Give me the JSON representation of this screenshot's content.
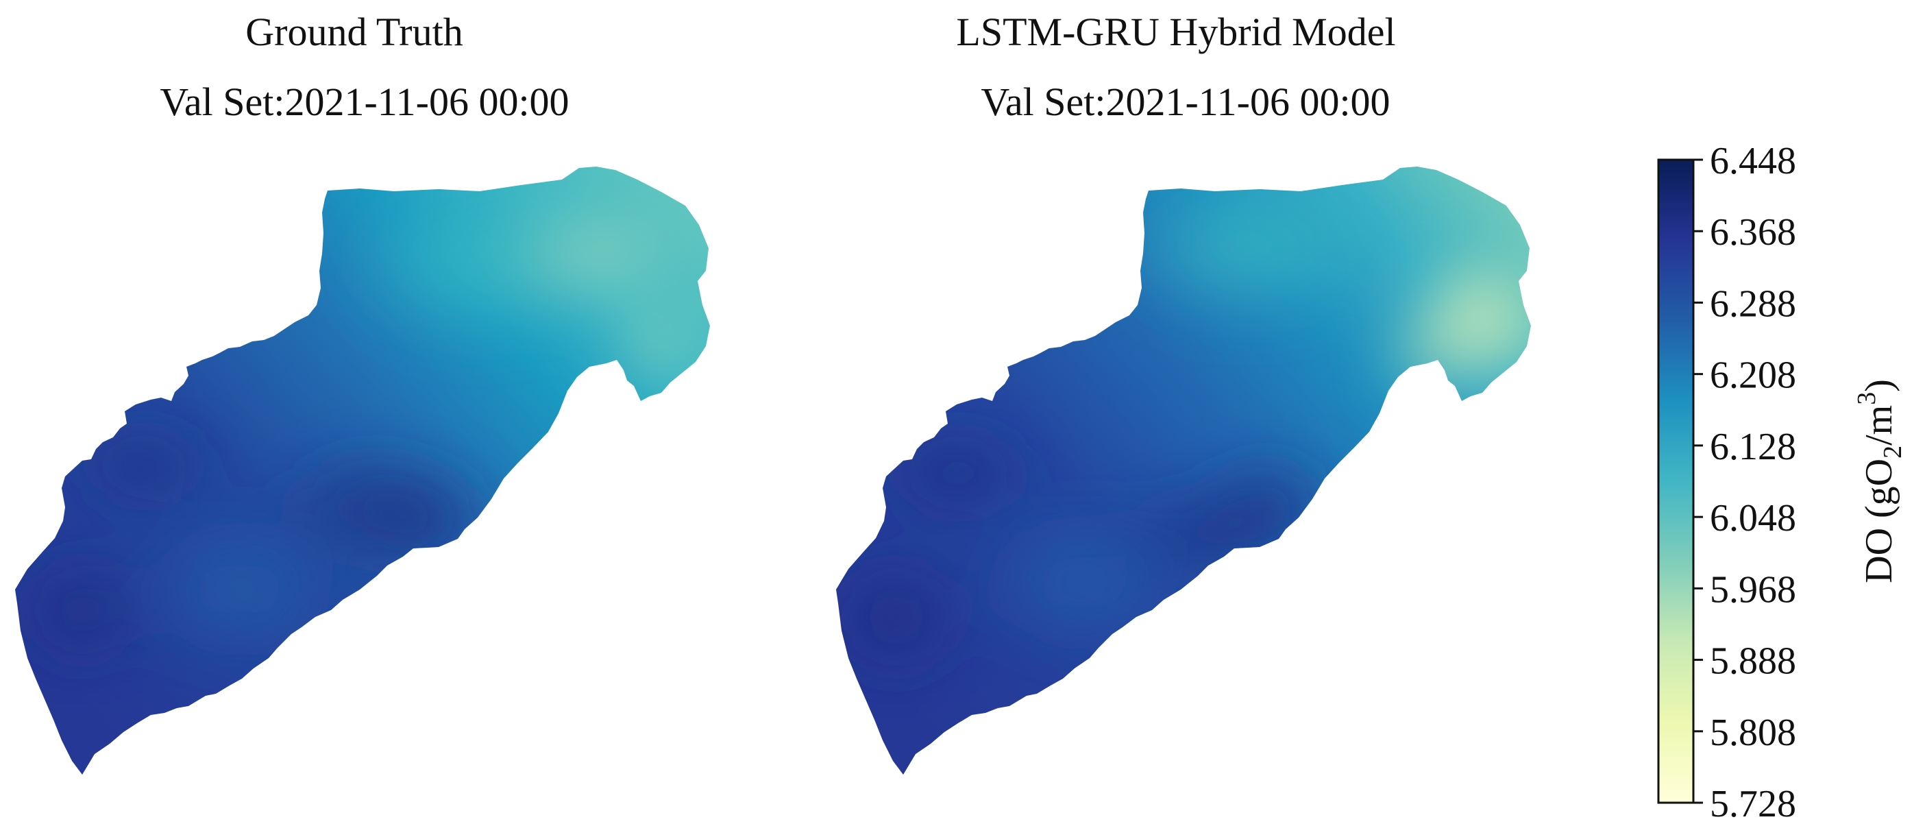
{
  "chart_data": {
    "type": "heatmap",
    "panels": [
      {
        "title_line1": "Ground Truth",
        "title_line2": "Val Set:2021-11-06 00:00"
      },
      {
        "title_line1": "LSTM-GRU Hybrid Model",
        "title_line2": "Val Set:2021-11-06 00:00"
      }
    ],
    "colorbar": {
      "label_prefix": "DO (gO",
      "label_sub": "2",
      "label_mid": "/m",
      "label_sup": "3",
      "label_suffix": ")",
      "min": 5.728,
      "max": 6.448,
      "ticks": [
        "6.448",
        "6.368",
        "6.288",
        "6.208",
        "6.128",
        "6.048",
        "5.968",
        "5.888",
        "5.808",
        "5.728"
      ],
      "colormap": "YlGnBu",
      "colors": [
        "#ffffd9",
        "#edf8b1",
        "#c7e9b4",
        "#7fcdbb",
        "#41b6c4",
        "#1d91c0",
        "#225ea8",
        "#253494",
        "#081d58"
      ]
    }
  }
}
